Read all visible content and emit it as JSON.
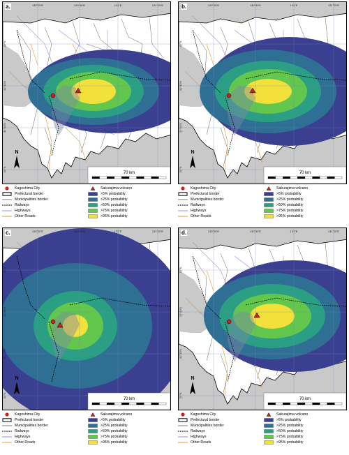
{
  "panels": [
    {
      "label": "a."
    },
    {
      "label": "b."
    },
    {
      "label": "c."
    },
    {
      "label": "d."
    }
  ],
  "map": {
    "lon_ticks": [
      "130°20'E",
      "130°40'E",
      "131°E",
      "131°20'E"
    ],
    "lat_ticks": [
      "32°N",
      "31°40'N",
      "31°20'N",
      "31°N"
    ],
    "north_label": "N",
    "scale_label": "70   km"
  },
  "legend": {
    "left": [
      {
        "label": "Kagoshima City",
        "icon": "red-dot"
      },
      {
        "label": "Prefectural border",
        "icon": "thick-box"
      },
      {
        "label": "Municipalities border",
        "icon": "thin-line"
      },
      {
        "label": "Railways",
        "icon": "rail-line"
      },
      {
        "label": "Highways",
        "icon": "purple-line"
      },
      {
        "label": "Other Roads",
        "icon": "orange-line"
      }
    ],
    "right": [
      {
        "label": "Sakurajima volcano",
        "icon": "red-triangle"
      },
      {
        "label": ">5%   probability",
        "color": "#3b3f8f"
      },
      {
        "label": ">25% probability",
        "color": "#2e6f93"
      },
      {
        "label": ">50% probability",
        "color": "#2a9f83"
      },
      {
        "label": ">75% probability",
        "color": "#63c64d"
      },
      {
        "label": ">95% probability",
        "color": "#f1e13a"
      }
    ]
  },
  "colors": {
    "land": "#ffffff",
    "sea": "#c9c9c9",
    "kagoshima": "#cc1f1f",
    "volcano": "#cc1f1f",
    "highway": "#a88be0",
    "roads": "#e39b2a",
    "border": "#000000"
  }
}
